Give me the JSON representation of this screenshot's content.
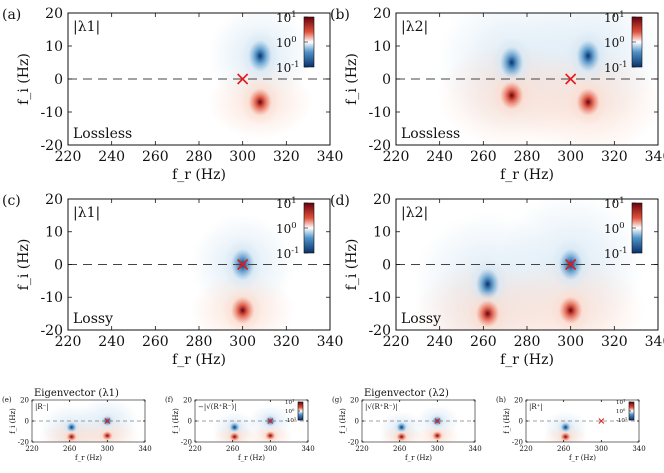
{
  "figure": {
    "colors": {
      "pole_deep": "#08306b",
      "pole_mid": "#4f93c8",
      "pole_light": "#d6e7f4",
      "zero_deep": "#67000d",
      "zero_mid": "#e0523c",
      "zero_light": "#fbdccf",
      "marker": "#e41a1c",
      "axis": "#111111",
      "dash": "#444444"
    }
  },
  "chart_data": [
    {
      "id": "a",
      "panel_label": "(a)",
      "type": "heatmap",
      "quantity": "|λ1|",
      "annotation": "Lossless",
      "xlabel": "f_r (Hz)",
      "ylabel": "f_i (Hz)",
      "xlim": [
        220,
        340
      ],
      "ylim": [
        -20,
        20
      ],
      "xticks": [
        "220",
        "240",
        "260",
        "280",
        "300",
        "320",
        "340"
      ],
      "yticks": [
        "20",
        "10",
        "0",
        "-10",
        "-20"
      ],
      "colorbar": {
        "ticks": [
          "10^1",
          "10^0",
          "10^-1"
        ],
        "scale": "log"
      },
      "poles": [
        [
          308,
          7
        ]
      ],
      "zeros": [
        [
          308,
          -7
        ]
      ],
      "markers": [
        [
          300,
          0
        ]
      ],
      "background": "light"
    },
    {
      "id": "b",
      "panel_label": "(b)",
      "type": "heatmap",
      "quantity": "|λ2|",
      "annotation": "Lossless",
      "xlabel": "f_r (Hz)",
      "ylabel": "f_i (Hz)",
      "xlim": [
        220,
        340
      ],
      "ylim": [
        -20,
        20
      ],
      "xticks": [
        "220",
        "240",
        "260",
        "280",
        "300",
        "320",
        "340"
      ],
      "yticks": [
        "20",
        "10",
        "0",
        "-10",
        "-20"
      ],
      "colorbar": {
        "ticks": [
          "10^1",
          "10^0",
          "10^-1"
        ],
        "scale": "log"
      },
      "poles": [
        [
          273,
          5
        ],
        [
          308,
          7
        ]
      ],
      "zeros": [
        [
          273,
          -5
        ],
        [
          308,
          -7
        ]
      ],
      "markers": [
        [
          300,
          0
        ]
      ],
      "background": "strong"
    },
    {
      "id": "c",
      "panel_label": "(c)",
      "type": "heatmap",
      "quantity": "|λ1|",
      "annotation": "Lossy",
      "xlabel": "f_r (Hz)",
      "ylabel": "f_i (Hz)",
      "xlim": [
        220,
        340
      ],
      "ylim": [
        -20,
        20
      ],
      "xticks": [
        "220",
        "240",
        "260",
        "280",
        "300",
        "320",
        "340"
      ],
      "yticks": [
        "20",
        "10",
        "0",
        "-10",
        "-20"
      ],
      "colorbar": {
        "ticks": [
          "10^1",
          "10^0",
          "10^-1"
        ],
        "scale": "log"
      },
      "poles": [
        [
          300,
          0
        ]
      ],
      "zeros": [
        [
          300,
          -14
        ]
      ],
      "markers": [
        [
          300,
          0
        ]
      ],
      "background": "light"
    },
    {
      "id": "d",
      "panel_label": "(d)",
      "type": "heatmap",
      "quantity": "|λ2|",
      "annotation": "Lossy",
      "xlabel": "f_r (Hz)",
      "ylabel": "f_i (Hz)",
      "xlim": [
        220,
        340
      ],
      "ylim": [
        -20,
        20
      ],
      "xticks": [
        "220",
        "240",
        "260",
        "280",
        "300",
        "320",
        "340"
      ],
      "yticks": [
        "20",
        "10",
        "0",
        "-10",
        "-20"
      ],
      "colorbar": {
        "ticks": [
          "10^1",
          "10^0",
          "10^-1"
        ],
        "scale": "log"
      },
      "poles": [
        [
          262,
          -6
        ],
        [
          300,
          0
        ]
      ],
      "zeros": [
        [
          262,
          -15
        ],
        [
          300,
          -14
        ]
      ],
      "markers": [
        [
          300,
          0
        ]
      ],
      "background": "strong"
    },
    {
      "id": "e",
      "panel_label": "(e)",
      "type": "heatmap",
      "title": "Eigenvector (λ1)",
      "quantity": "|R⁻|",
      "xlabel": "f_r (Hz)",
      "ylabel": "f_i (Hz)",
      "xlim": [
        220,
        340
      ],
      "ylim": [
        -20,
        20
      ],
      "xticks": [
        "220",
        "260",
        "300",
        "340"
      ],
      "yticks": [
        "20",
        "0",
        "-20"
      ],
      "poles": [
        [
          262,
          -6
        ],
        [
          300,
          0
        ]
      ],
      "zeros": [
        [
          262,
          -15
        ],
        [
          300,
          -14
        ]
      ],
      "markers": [
        [
          300,
          0
        ]
      ],
      "background": "strong"
    },
    {
      "id": "f",
      "panel_label": "(f)",
      "type": "heatmap",
      "quantity": "−|√(R⁺R⁻)|",
      "xlabel": "f_r (Hz)",
      "ylabel": "f_i (Hz)",
      "xlim": [
        220,
        340
      ],
      "ylim": [
        -20,
        20
      ],
      "xticks": [
        "220",
        "260",
        "300",
        "340"
      ],
      "yticks": [
        "20",
        "0",
        "-20"
      ],
      "colorbar": {
        "ticks": [
          "10^1",
          "10^0",
          "-10^1"
        ],
        "scale": "log"
      },
      "poles": [
        [
          262,
          -6
        ],
        [
          300,
          0
        ]
      ],
      "zeros": [
        [
          262,
          -15
        ],
        [
          300,
          -14
        ]
      ],
      "markers": [
        [
          300,
          0
        ]
      ],
      "background": "light"
    },
    {
      "id": "g",
      "panel_label": "(g)",
      "type": "heatmap",
      "title": "Eigenvector (λ2)",
      "quantity": "|√(R⁺R⁻)|",
      "xlabel": "f_r (Hz)",
      "ylabel": "f_i (Hz)",
      "xlim": [
        220,
        340
      ],
      "ylim": [
        -20,
        20
      ],
      "xticks": [
        "220",
        "260",
        "300",
        "340"
      ],
      "yticks": [
        "20",
        "0",
        "-20"
      ],
      "poles": [
        [
          262,
          -6
        ],
        [
          300,
          0
        ]
      ],
      "zeros": [
        [
          262,
          -15
        ],
        [
          300,
          -14
        ]
      ],
      "markers": [
        [
          300,
          0
        ]
      ],
      "background": "light"
    },
    {
      "id": "h",
      "panel_label": "(h)",
      "type": "heatmap",
      "quantity": "|R⁺|",
      "xlabel": "f_r (Hz)",
      "ylabel": "f_i (Hz)",
      "xlim": [
        220,
        340
      ],
      "ylim": [
        -20,
        20
      ],
      "xticks": [
        "220",
        "260",
        "300",
        "340"
      ],
      "yticks": [
        "20",
        "0",
        "-20"
      ],
      "colorbar": {
        "ticks": [
          "10^1",
          "10^0",
          "-10^1"
        ],
        "scale": "log"
      },
      "poles": [
        [
          262,
          -6
        ]
      ],
      "zeros": [
        [
          262,
          -15
        ]
      ],
      "markers": [
        [
          300,
          0
        ]
      ],
      "background": "light"
    }
  ]
}
